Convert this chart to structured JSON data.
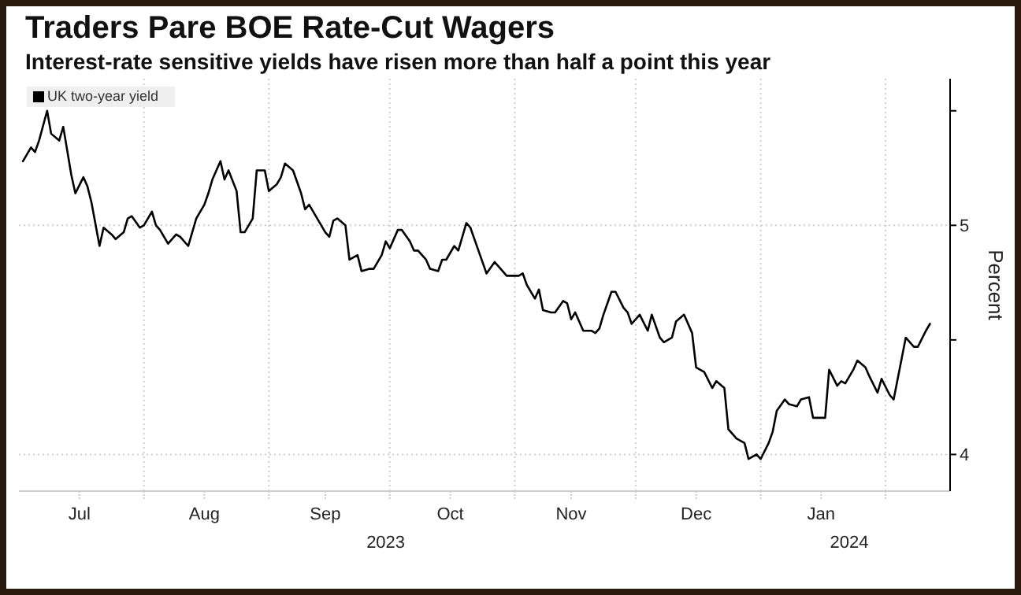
{
  "chart_data": {
    "type": "line",
    "title": "Traders Pare BOE Rate-Cut Wagers",
    "subtitle": "Interest-rate sensitive yields have risen more than half a point this year",
    "ylabel": "Percent",
    "x": [
      "2023-07-02",
      "2023-07-04",
      "2023-07-05",
      "2023-07-06",
      "2023-07-08",
      "2023-07-09",
      "2023-07-11",
      "2023-07-12",
      "2023-07-14",
      "2023-07-15",
      "2023-07-17",
      "2023-07-18",
      "2023-07-19",
      "2023-07-21",
      "2023-07-22",
      "2023-07-24",
      "2023-07-25",
      "2023-07-27",
      "2023-07-28",
      "2023-07-29",
      "2023-07-31",
      "2023-08-01",
      "2023-08-03",
      "2023-08-04",
      "2023-08-05",
      "2023-08-07",
      "2023-08-09",
      "2023-08-10",
      "2023-08-12",
      "2023-08-14",
      "2023-08-16",
      "2023-08-17",
      "2023-08-18",
      "2023-08-20",
      "2023-08-21",
      "2023-08-22",
      "2023-08-24",
      "2023-08-25",
      "2023-08-26",
      "2023-08-28",
      "2023-08-29",
      "2023-08-31",
      "2023-09-01",
      "2023-09-03",
      "2023-09-04",
      "2023-09-05",
      "2023-09-07",
      "2023-09-09",
      "2023-09-10",
      "2023-09-11",
      "2023-09-13",
      "2023-09-15",
      "2023-09-16",
      "2023-09-17",
      "2023-09-18",
      "2023-09-20",
      "2023-09-21",
      "2023-09-23",
      "2023-09-24",
      "2023-09-26",
      "2023-09-27",
      "2023-09-29",
      "2023-09-30",
      "2023-10-01",
      "2023-10-03",
      "2023-10-04",
      "2023-10-06",
      "2023-10-07",
      "2023-10-08",
      "2023-10-10",
      "2023-10-11",
      "2023-10-13",
      "2023-10-14",
      "2023-10-15",
      "2023-10-17",
      "2023-10-18",
      "2023-10-20",
      "2023-10-21",
      "2023-10-23",
      "2023-10-24",
      "2023-10-25",
      "2023-10-27",
      "2023-10-28",
      "2023-10-30",
      "2023-10-31",
      "2023-11-02",
      "2023-11-03",
      "2023-11-04",
      "2023-11-06",
      "2023-11-07",
      "2023-11-08",
      "2023-11-10",
      "2023-11-11",
      "2023-11-13",
      "2023-11-14",
      "2023-11-15",
      "2023-11-16",
      "2023-11-18",
      "2023-11-20",
      "2023-11-21",
      "2023-11-22",
      "2023-11-23",
      "2023-11-25",
      "2023-11-26",
      "2023-11-28",
      "2023-11-29",
      "2023-11-30",
      "2023-12-02",
      "2023-12-04",
      "2023-12-05",
      "2023-12-07",
      "2023-12-08",
      "2023-12-10",
      "2023-12-11",
      "2023-12-13",
      "2023-12-15",
      "2023-12-16",
      "2023-12-18",
      "2023-12-20",
      "2023-12-21",
      "2023-12-23",
      "2023-12-24",
      "2023-12-26",
      "2023-12-28",
      "2023-12-29",
      "2023-12-31",
      "2024-01-01",
      "2024-01-03",
      "2024-01-04",
      "2024-01-05",
      "2024-01-07",
      "2024-01-08",
      "2024-01-10",
      "2024-01-11",
      "2024-01-13",
      "2024-01-14",
      "2024-01-17",
      "2024-01-18",
      "2024-01-20",
      "2024-01-21",
      "2024-01-22",
      "2024-01-24",
      "2024-01-25",
      "2024-01-27",
      "2024-01-28",
      "2024-01-30",
      "2024-01-31",
      "2024-02-02",
      "2024-02-03",
      "2024-02-05",
      "2024-02-06",
      "2024-02-08",
      "2024-02-09",
      "2024-02-11",
      "2024-02-12"
    ],
    "series": [
      {
        "name": "UK two-year yield",
        "color": "#000000",
        "values": [
          5.28,
          5.34,
          5.32,
          5.37,
          5.5,
          5.4,
          5.37,
          5.43,
          5.22,
          5.14,
          5.21,
          5.17,
          5.1,
          4.91,
          4.99,
          4.96,
          4.94,
          4.97,
          5.03,
          5.04,
          4.99,
          5.0,
          5.06,
          5.0,
          4.98,
          4.92,
          4.96,
          4.95,
          4.91,
          5.03,
          5.09,
          5.14,
          5.2,
          5.28,
          5.2,
          5.24,
          5.15,
          4.97,
          4.97,
          5.03,
          5.24,
          5.24,
          5.15,
          5.18,
          5.21,
          5.27,
          5.24,
          5.14,
          5.07,
          5.09,
          5.03,
          4.97,
          4.95,
          5.02,
          5.03,
          5.0,
          4.85,
          4.87,
          4.8,
          4.81,
          4.81,
          4.87,
          4.93,
          4.9,
          4.98,
          4.98,
          4.93,
          4.89,
          4.89,
          4.85,
          4.81,
          4.8,
          4.85,
          4.85,
          4.91,
          4.89,
          5.01,
          4.99,
          4.89,
          4.84,
          4.79,
          4.84,
          4.82,
          4.78,
          4.78,
          4.78,
          4.79,
          4.74,
          4.68,
          4.72,
          4.63,
          4.62,
          4.62,
          4.67,
          4.66,
          4.59,
          4.62,
          4.54,
          4.54,
          4.53,
          4.55,
          4.61,
          4.71,
          4.71,
          4.64,
          4.62,
          4.57,
          4.61,
          4.54,
          4.61,
          4.51,
          4.49,
          4.51,
          4.58,
          4.61,
          4.53,
          4.38,
          4.36,
          4.29,
          4.32,
          4.29,
          4.11,
          4.07,
          4.05,
          3.98,
          4.0,
          3.98,
          4.05,
          4.1,
          4.19,
          4.24,
          4.22,
          4.21,
          4.24,
          4.25,
          4.16,
          4.16,
          4.37,
          4.3,
          4.32,
          4.31,
          4.37,
          4.41,
          4.38,
          4.34,
          4.27,
          4.33,
          4.26,
          4.24,
          4.42,
          4.51,
          4.47,
          4.47,
          4.54,
          4.57
        ]
      }
    ],
    "xlim": [
      "2023-07-01",
      "2024-02-17"
    ],
    "xticks": [
      {
        "value": "2023-07-16",
        "label": "Jul"
      },
      {
        "value": "2023-08-01",
        "label": null
      },
      {
        "value": "2023-08-16",
        "label": "Aug"
      },
      {
        "value": "2023-09-01",
        "label": null
      },
      {
        "value": "2023-09-15",
        "label": "Sep"
      },
      {
        "value": "2023-10-01",
        "label": null
      },
      {
        "value": "2023-10-16",
        "label": "Oct"
      },
      {
        "value": "2023-11-01",
        "label": null
      },
      {
        "value": "2023-11-15",
        "label": "Nov"
      },
      {
        "value": "2023-12-01",
        "label": null
      },
      {
        "value": "2023-12-16",
        "label": "Dec"
      },
      {
        "value": "2024-01-01",
        "label": null
      },
      {
        "value": "2024-01-16",
        "label": "Jan"
      },
      {
        "value": "2024-02-01",
        "label": null
      }
    ],
    "x2lim": [
      "2023-07-01",
      "2024-02-17"
    ],
    "x2ticks": [
      {
        "value": "2023-09-30",
        "label": "2023"
      },
      {
        "value": "2024-01-23",
        "label": "2024"
      }
    ],
    "ylim": [
      3.84,
      5.64
    ],
    "yticks": [
      {
        "value": 4,
        "label": "4"
      },
      {
        "value": 4.5,
        "label": null
      },
      {
        "value": 5,
        "label": "5"
      },
      {
        "value": 5.5,
        "label": null
      }
    ],
    "grid": true,
    "legend": "top left",
    "marker": "none",
    "line_style": "solid"
  }
}
